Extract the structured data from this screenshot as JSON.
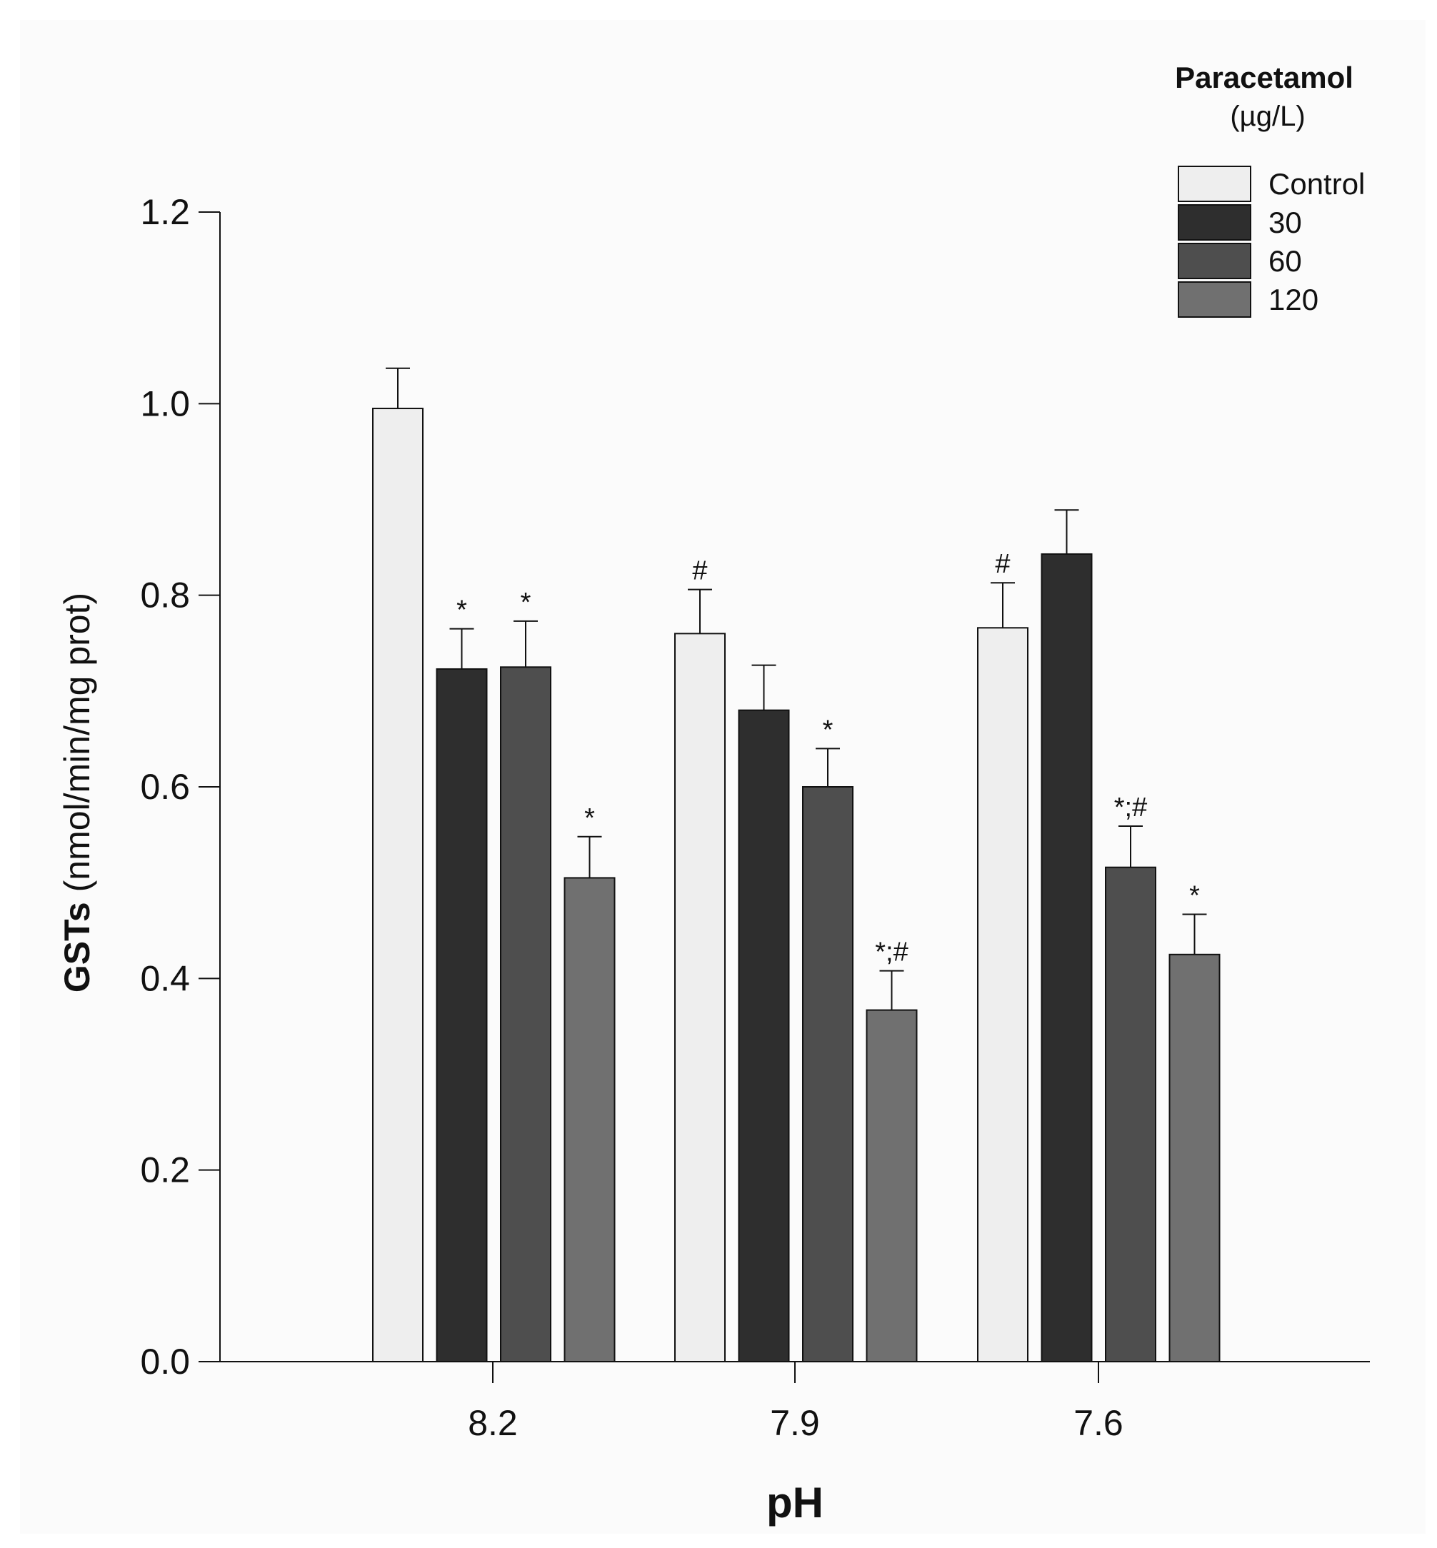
{
  "chart_data": {
    "type": "bar",
    "xlabel": "pH",
    "ylabel_bold": "GSTs",
    "ylabel_rest": " (nmol/min/mg prot)",
    "ylim": [
      0,
      1.2
    ],
    "yticks": [
      "0.0",
      "0.2",
      "0.4",
      "0.6",
      "0.8",
      "1.0",
      "1.2"
    ],
    "categories": [
      "8.2",
      "7.9",
      "7.6"
    ],
    "legend": {
      "title": "Paracetamol",
      "subtitle": "(µg/L)",
      "placement": "top-right"
    },
    "series": [
      {
        "name": "Control",
        "color": "#eeeeee",
        "values": [
          0.995,
          0.76,
          0.766
        ],
        "errors": [
          0.042,
          0.046,
          0.047
        ],
        "annotations": [
          "",
          "#",
          "#"
        ]
      },
      {
        "name": "30",
        "color": "#2e2e2e",
        "values": [
          0.723,
          0.68,
          0.843
        ],
        "errors": [
          0.042,
          0.047,
          0.046
        ],
        "annotations": [
          "*",
          "",
          ""
        ]
      },
      {
        "name": "60",
        "color": "#4e4e4e",
        "values": [
          0.725,
          0.6,
          0.516
        ],
        "errors": [
          0.048,
          0.04,
          0.043
        ],
        "annotations": [
          "*",
          "*",
          "*;#"
        ]
      },
      {
        "name": "120",
        "color": "#707070",
        "values": [
          0.505,
          0.367,
          0.425
        ],
        "errors": [
          0.043,
          0.041,
          0.042
        ],
        "annotations": [
          "*",
          "*;#",
          "*"
        ]
      }
    ]
  }
}
